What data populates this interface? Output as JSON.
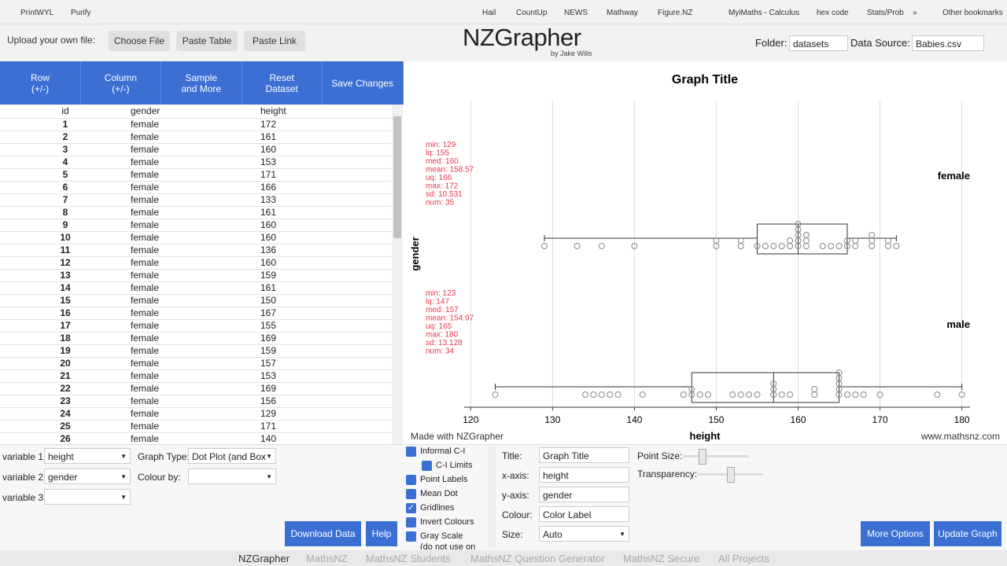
{
  "bookmarks": [
    "PrintWYL",
    "Purify",
    "Hail",
    "CountUp",
    "NEWS",
    "Mathway",
    "Figure.NZ",
    "MyiMaths - Calculus",
    "hex code",
    "Stats/Prob",
    "»",
    "Other bookmarks"
  ],
  "header": {
    "upload_label": "Upload your own file:",
    "buttons": [
      "Choose File",
      "Paste Table",
      "Paste Link"
    ],
    "logo": "NZGrapher",
    "byline": "by Jake Wills",
    "folder_label": "Folder:",
    "folder_value": "datasets",
    "source_label": "Data Source:",
    "source_value": "Babies.csv"
  },
  "toolbar": [
    [
      "Row",
      "(+/-)"
    ],
    [
      "Column",
      "(+/-)"
    ],
    [
      "Sample",
      "and More"
    ],
    [
      "Reset",
      "Dataset"
    ],
    [
      "Save Changes"
    ]
  ],
  "table": {
    "columns": [
      "id",
      "gender",
      "height"
    ],
    "rows": [
      [
        1,
        "female",
        172
      ],
      [
        2,
        "female",
        161
      ],
      [
        3,
        "female",
        160
      ],
      [
        4,
        "female",
        153
      ],
      [
        5,
        "female",
        171
      ],
      [
        6,
        "female",
        166
      ],
      [
        7,
        "female",
        133
      ],
      [
        8,
        "female",
        161
      ],
      [
        9,
        "female",
        160
      ],
      [
        10,
        "female",
        160
      ],
      [
        11,
        "female",
        136
      ],
      [
        12,
        "female",
        160
      ],
      [
        13,
        "female",
        159
      ],
      [
        14,
        "female",
        161
      ],
      [
        15,
        "female",
        150
      ],
      [
        16,
        "female",
        167
      ],
      [
        17,
        "female",
        155
      ],
      [
        18,
        "female",
        169
      ],
      [
        19,
        "female",
        159
      ],
      [
        20,
        "female",
        157
      ],
      [
        21,
        "female",
        153
      ],
      [
        22,
        "female",
        169
      ],
      [
        23,
        "female",
        156
      ],
      [
        24,
        "female",
        129
      ],
      [
        25,
        "female",
        171
      ],
      [
        26,
        "female",
        140
      ]
    ]
  },
  "variables": [
    {
      "label": "variable 1:",
      "value": "height"
    },
    {
      "label": "variable 2:",
      "value": "gender"
    },
    {
      "label": "variable 3:"
    }
  ],
  "graph_type": {
    "label": "Graph Type:",
    "value": "Dot Plot (and Box"
  },
  "colour_by": {
    "label": "Colour by:"
  },
  "buttons": {
    "download": "Download Data",
    "help": "Help",
    "more": "More Options",
    "update": "Update Graph"
  },
  "options": [
    {
      "label": "Informal C-I",
      "checked": false
    },
    {
      "label": "C-I Limits",
      "checked": false
    },
    {
      "label": "Point Labels",
      "checked": false
    },
    {
      "label": "Mean Dot",
      "checked": false
    },
    {
      "label": "Gridlines",
      "checked": true
    },
    {
      "label": "Invert Colours",
      "checked": false
    },
    {
      "label": "Gray Scale",
      "checked": false,
      "note": "(do not use on"
    }
  ],
  "fields": [
    {
      "label": "Title:",
      "value": "Graph Title"
    },
    {
      "label": "x-axis:",
      "value": "height"
    },
    {
      "label": "y-axis:",
      "value": "gender"
    },
    {
      "label": "Colour:",
      "value": "Color Label"
    },
    {
      "label": "Size:",
      "value": "Auto"
    }
  ],
  "sliders": [
    "Point Size:",
    "Transparency:"
  ],
  "footer": [
    "NZGrapher",
    "MathsNZ",
    "MathsNZ Students",
    "MathsNZ Question Generator",
    "MathsNZ Secure",
    "All Projects"
  ],
  "chart_data": {
    "type": "dotplot",
    "title": "Graph Title",
    "x_label": "height",
    "y_label": "gender",
    "xlim": [
      119.2,
      181
    ],
    "xticks": [
      120,
      130,
      140,
      150,
      160,
      170,
      180
    ],
    "grid": true,
    "credit": "Made with NZGrapher",
    "website": "www.mathsnz.com",
    "stats_color": "#e8384f",
    "groups": [
      {
        "name": "female",
        "stats": {
          "min": 129,
          "lq": 155,
          "med": 160,
          "uq": 166,
          "max": 172
        },
        "stat_labels": [
          "min: 129",
          "lq: 155",
          "med: 160",
          "mean: 158.57",
          "uq: 166",
          "max: 172",
          "sd: 10.531",
          "num: 35"
        ],
        "values": [
          172,
          161,
          160,
          153,
          171,
          166,
          133,
          161,
          160,
          160,
          136,
          160,
          159,
          161,
          150,
          167,
          155,
          169,
          159,
          157,
          153,
          169,
          156,
          129,
          171,
          140,
          150,
          158,
          160,
          163,
          164,
          165,
          167,
          169,
          166
        ]
      },
      {
        "name": "male",
        "stats": {
          "min": 123,
          "lq": 147,
          "med": 157,
          "uq": 165,
          "max": 180
        },
        "stat_labels": [
          "min: 123",
          "lq: 147",
          "med: 157",
          "mean: 154.97",
          "uq: 165",
          "max: 180",
          "sd: 13.128",
          "num: 34"
        ],
        "values": [
          123,
          134,
          135,
          136,
          137,
          138,
          141,
          146,
          147,
          147,
          148,
          149,
          152,
          153,
          154,
          155,
          157,
          157,
          157,
          158,
          159,
          162,
          162,
          165,
          165,
          165,
          165,
          165,
          166,
          167,
          168,
          170,
          177,
          180
        ]
      }
    ]
  }
}
